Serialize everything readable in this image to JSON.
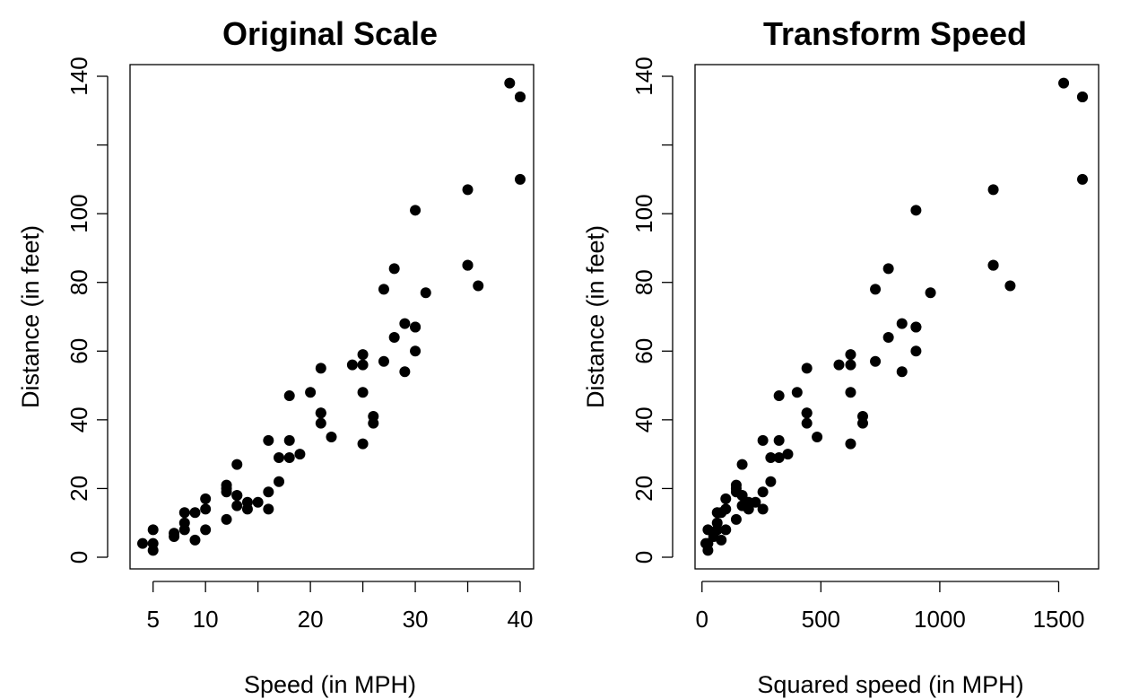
{
  "chart_data": [
    {
      "type": "scatter",
      "title": "Original Scale",
      "xlabel": "Speed (in MPH)",
      "ylabel": "Distance (in feet)",
      "xlim": [
        4,
        40
      ],
      "ylim": [
        0,
        140
      ],
      "xticks": [
        5,
        10,
        20,
        30,
        40
      ],
      "xtick_marks": [
        5,
        10,
        15,
        20,
        25,
        30,
        35,
        40
      ],
      "xtick_labels": [
        "5",
        "10",
        "20",
        "30",
        "40"
      ],
      "yticks": [
        0,
        20,
        40,
        60,
        80,
        100,
        120,
        140
      ],
      "ytick_labels": [
        "0",
        "20",
        "40",
        "60",
        "80",
        "100",
        "",
        "140"
      ],
      "grid": false,
      "x": [
        4,
        5,
        5,
        5,
        7,
        7,
        8,
        8,
        8,
        9,
        9,
        10,
        10,
        10,
        12,
        12,
        12,
        12,
        13,
        13,
        13,
        13,
        14,
        14,
        15,
        16,
        16,
        16,
        17,
        17,
        18,
        18,
        18,
        19,
        20,
        21,
        21,
        21,
        21,
        22,
        24,
        25,
        25,
        25,
        25,
        26,
        26,
        27,
        27,
        28,
        28,
        29,
        29,
        30,
        30,
        30,
        30,
        31,
        35,
        35,
        35,
        36,
        39,
        40,
        40,
        40
      ],
      "y": [
        4,
        2,
        4,
        8,
        6,
        7,
        8,
        10,
        13,
        5,
        13,
        8,
        14,
        17,
        11,
        19,
        20,
        21,
        15,
        18,
        18,
        27,
        14,
        16,
        16,
        14,
        19,
        34,
        22,
        29,
        29,
        34,
        47,
        30,
        48,
        39,
        42,
        42,
        55,
        35,
        56,
        33,
        48,
        56,
        59,
        39,
        41,
        57,
        78,
        64,
        84,
        54,
        68,
        60,
        67,
        67,
        101,
        77,
        85,
        85,
        107,
        79,
        138,
        110,
        134,
        134
      ]
    },
    {
      "type": "scatter",
      "title": "Transform Speed",
      "xlabel": "Squared speed (in MPH)",
      "ylabel": "Distance (in feet)",
      "xlim": [
        16,
        1600
      ],
      "ylim": [
        0,
        140
      ],
      "xticks": [
        0,
        500,
        1000,
        1500
      ],
      "xtick_labels": [
        "0",
        "500",
        "1000",
        "1500"
      ],
      "yticks": [
        0,
        20,
        40,
        60,
        80,
        100,
        120,
        140
      ],
      "ytick_labels": [
        "0",
        "20",
        "40",
        "60",
        "80",
        "100",
        "",
        "140"
      ],
      "grid": false,
      "x": [
        16,
        25,
        25,
        25,
        49,
        49,
        64,
        64,
        64,
        81,
        81,
        100,
        100,
        100,
        144,
        144,
        144,
        144,
        169,
        169,
        169,
        169,
        196,
        196,
        225,
        256,
        256,
        256,
        289,
        289,
        324,
        324,
        324,
        361,
        400,
        441,
        441,
        441,
        441,
        484,
        576,
        625,
        625,
        625,
        625,
        676,
        676,
        729,
        729,
        784,
        784,
        841,
        841,
        900,
        900,
        900,
        900,
        961,
        1225,
        1225,
        1225,
        1296,
        1521,
        1600,
        1600,
        1600
      ],
      "y": [
        4,
        2,
        4,
        8,
        6,
        7,
        8,
        10,
        13,
        5,
        13,
        8,
        14,
        17,
        11,
        19,
        20,
        21,
        15,
        18,
        18,
        27,
        14,
        16,
        16,
        14,
        19,
        34,
        22,
        29,
        29,
        34,
        47,
        30,
        48,
        39,
        42,
        42,
        55,
        35,
        56,
        33,
        48,
        56,
        59,
        39,
        41,
        57,
        78,
        64,
        84,
        54,
        68,
        60,
        67,
        67,
        101,
        77,
        85,
        85,
        107,
        79,
        138,
        110,
        134,
        134
      ]
    }
  ]
}
